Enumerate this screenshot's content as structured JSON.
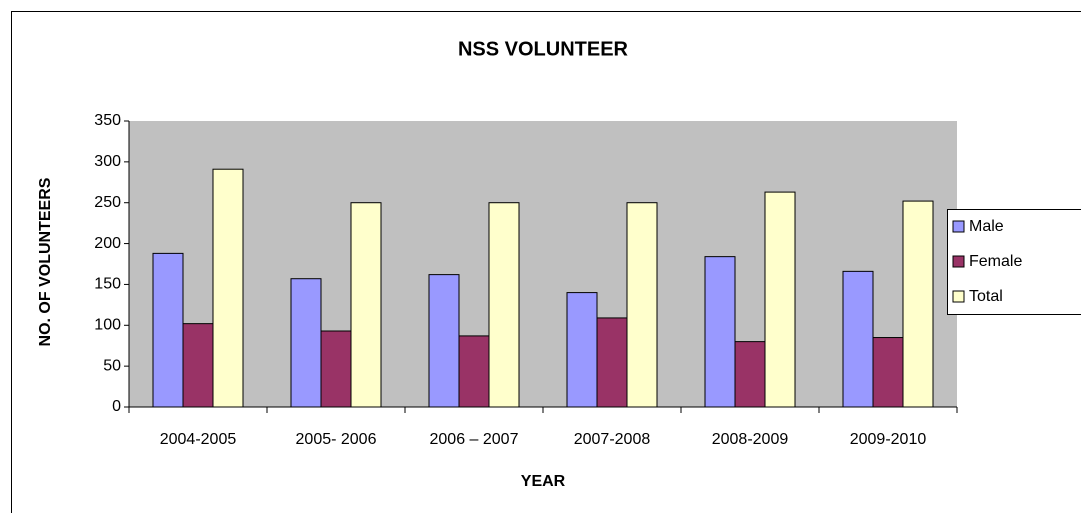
{
  "chart_data": {
    "type": "bar",
    "title": "NSS VOLUNTEER",
    "x_label": "YEAR",
    "y_label": "NO. OF VOLUNTEERS",
    "categories": [
      "2004-2005",
      "2005- 2006",
      "2006 – 2007",
      "2007-2008",
      "2008-2009",
      "2009-2010"
    ],
    "series": [
      {
        "name": "Male",
        "color": "#9999ff",
        "values": [
          188,
          157,
          162,
          140,
          184,
          166
        ]
      },
      {
        "name": "Female",
        "color": "#993366",
        "values": [
          102,
          93,
          87,
          109,
          80,
          85
        ]
      },
      {
        "name": "Total",
        "color": "#ffffcc",
        "values": [
          291,
          250,
          250,
          250,
          263,
          252
        ]
      }
    ],
    "ylim": [
      0,
      350
    ],
    "yticks": [
      0,
      50,
      100,
      150,
      200,
      250,
      300,
      350
    ],
    "plot_background": "#c0c0c0",
    "legend": "right"
  }
}
